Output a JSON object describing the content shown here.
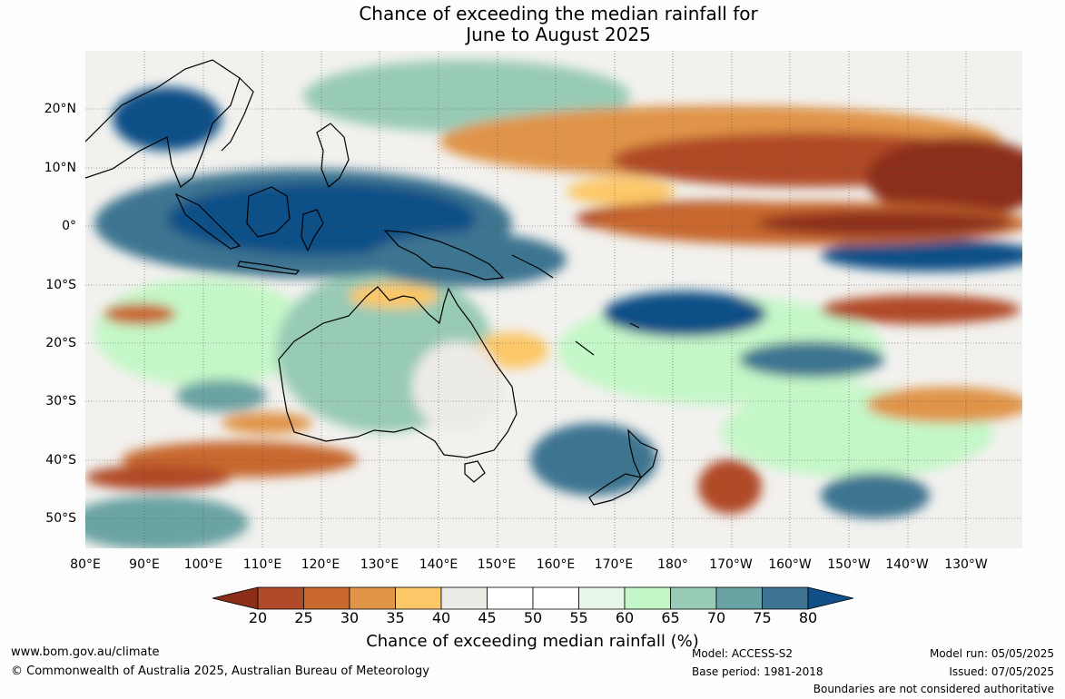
{
  "title": {
    "line1": "Chance of exceeding the median rainfall for",
    "line2": "June to August 2025"
  },
  "map": {
    "lat_labels": [
      "20°N",
      "10°N",
      "0°",
      "10°S",
      "20°S",
      "30°S",
      "40°S",
      "50°S"
    ],
    "lon_labels": [
      "80°E",
      "90°E",
      "100°E",
      "110°E",
      "120°E",
      "130°E",
      "140°E",
      "150°E",
      "160°E",
      "170°E",
      "180°",
      "170°W",
      "160°W",
      "150°W",
      "140°W",
      "130°W"
    ]
  },
  "legend": {
    "title": "Chance of exceeding median rainfall (%)",
    "ticks": [
      "20",
      "25",
      "30",
      "35",
      "40",
      "45",
      "50",
      "55",
      "60",
      "65",
      "70",
      "75",
      "80"
    ],
    "colors": [
      "#8c2d1a",
      "#b04a28",
      "#c8682f",
      "#e09448",
      "#fcc767",
      "#edebe6",
      "#ffffff",
      "#ffffff",
      "#e8f6e8",
      "#c4f7c7",
      "#98cbb5",
      "#6aa3a3",
      "#3e7491",
      "#104f87"
    ],
    "arrow_left_color": "#8c2d1a",
    "arrow_right_color": "#104f87"
  },
  "footer": {
    "url": "www.bom.gov.au/climate",
    "copyright": "© Commonwealth of Australia 2025, Australian Bureau of Meteorology",
    "model": "Model: ACCESS-S2",
    "base_period": "Base period: 1981-2018",
    "model_run": "Model run: 05/05/2025",
    "issued": "Issued: 07/05/2025",
    "disclaimer": "Boundaries are not considered authoritative"
  }
}
